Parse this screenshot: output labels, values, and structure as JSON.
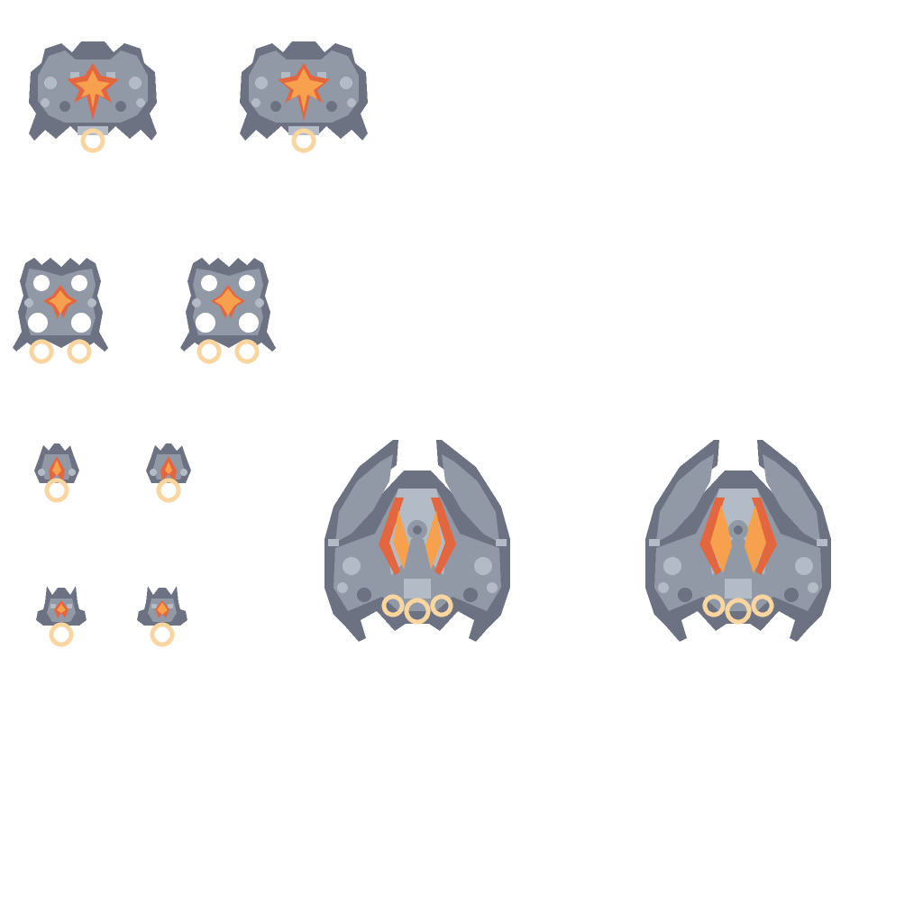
{
  "sheet": {
    "background": "#ffffff",
    "palette": {
      "shell_dark": "#6c7282",
      "shell_mid": "#9198a6",
      "shell_light": "#b3bcc6",
      "glow_orange": "#f7a04e",
      "glow_red": "#e4663e",
      "thruster_ring": "#f9d5a0",
      "core_hole": "#ffffff"
    },
    "sprites": [
      {
        "id": "crab-medium-a",
        "icon": "alien-crab-ship-icon",
        "frame": 1
      },
      {
        "id": "crab-medium-b",
        "icon": "alien-crab-ship-icon",
        "frame": 2
      },
      {
        "id": "twin-pod-a",
        "icon": "alien-twin-pod-ship-icon",
        "frame": 1
      },
      {
        "id": "twin-pod-b",
        "icon": "alien-twin-pod-ship-icon",
        "frame": 2
      },
      {
        "id": "scout-small-a",
        "icon": "alien-scout-ship-icon",
        "frame": 1
      },
      {
        "id": "scout-small-b",
        "icon": "alien-scout-ship-icon",
        "frame": 2
      },
      {
        "id": "drone-small-a",
        "icon": "alien-drone-ship-icon",
        "frame": 1
      },
      {
        "id": "drone-small-b",
        "icon": "alien-drone-ship-icon",
        "frame": 2
      },
      {
        "id": "boss-large-a",
        "icon": "alien-boss-ship-icon",
        "frame": 1
      },
      {
        "id": "boss-large-b",
        "icon": "alien-boss-ship-icon",
        "frame": 2
      }
    ]
  }
}
